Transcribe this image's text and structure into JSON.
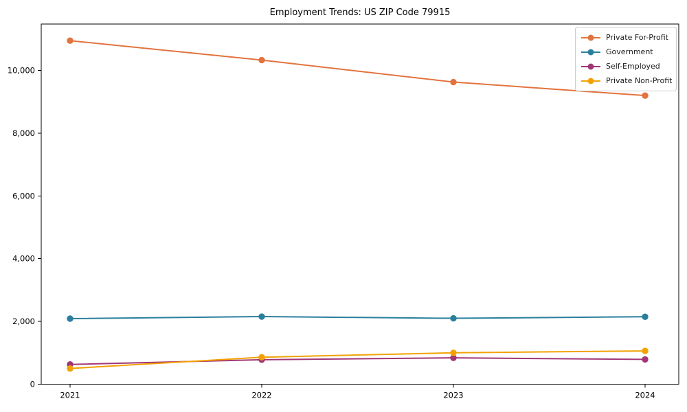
{
  "title": "Employment Trends: US ZIP Code 79915",
  "chart_data": {
    "type": "line",
    "title": "Employment Trends: US ZIP Code 79915",
    "x": [
      "2021",
      "2022",
      "2023",
      "2024"
    ],
    "series": [
      {
        "name": "Private For-Profit",
        "color": "#e2733e",
        "values": [
          10950,
          10330,
          9630,
          9200
        ]
      },
      {
        "name": "Government",
        "color": "#2a7f9d",
        "values": [
          2090,
          2155,
          2100,
          2150
        ]
      },
      {
        "name": "Self-Employed",
        "color": "#a13676",
        "values": [
          630,
          780,
          840,
          790
        ]
      },
      {
        "name": "Private Non-Profit",
        "color": "#f2a104",
        "values": [
          500,
          860,
          1000,
          1060
        ]
      }
    ],
    "xlabel": "",
    "ylabel": "",
    "xtick_labels": [
      "2021",
      "2022",
      "2023",
      "2024"
    ],
    "yticks": [
      0,
      2000,
      4000,
      6000,
      8000,
      10000
    ],
    "ytick_labels": [
      "0",
      "2,000",
      "4,000",
      "6,000",
      "8,000",
      "10,000"
    ],
    "ylim": [
      0,
      11480
    ],
    "grid": false,
    "marker": "circle",
    "legend_position": "upper right"
  }
}
